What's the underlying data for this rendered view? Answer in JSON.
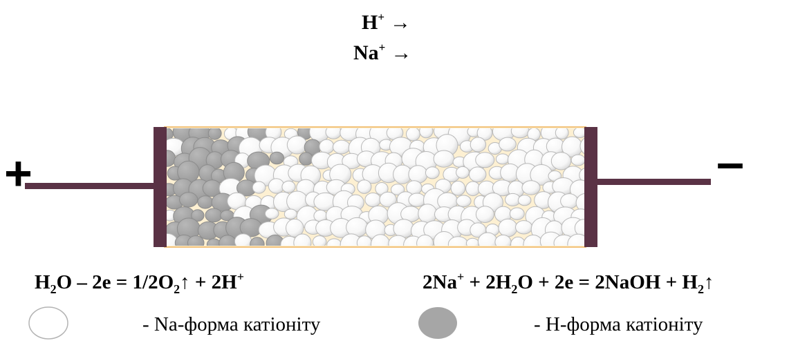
{
  "ions": [
    {
      "symbol": "H",
      "charge": "+",
      "arrow": "→"
    },
    {
      "symbol": "Na",
      "charge": "+",
      "arrow": "→"
    }
  ],
  "electrodes": {
    "anode_sign": "+",
    "cathode_sign": "–"
  },
  "equations": {
    "anode": [
      {
        "t": "H"
      },
      {
        "t": "2",
        "sub": true
      },
      {
        "t": "O – 2e = 1/2O"
      },
      {
        "t": "2",
        "sub": true
      },
      {
        "t": "↑ + 2H"
      },
      {
        "t": "+",
        "sup": true
      }
    ],
    "cathode": [
      {
        "t": "2Na"
      },
      {
        "t": "+",
        "sup": true
      },
      {
        "t": " + 2H"
      },
      {
        "t": "2",
        "sub": true
      },
      {
        "t": "O + 2e = 2NaOH + H"
      },
      {
        "t": "2",
        "sub": true
      },
      {
        "t": "↑"
      }
    ]
  },
  "legend": {
    "na_form": "- Na-форма катіоніту",
    "h_form": "- Н-форма катіоніту"
  },
  "colors": {
    "membrane_fill": "#fdf0d2",
    "membrane_border": "#f2c27a",
    "electrode": "#5a3245",
    "na_bead_fill": "#ffffff",
    "na_bead_stroke": "#b9b9b9",
    "h_bead_fill": "#a6a6a6",
    "h_bead_stroke": "#8c8c8c"
  }
}
